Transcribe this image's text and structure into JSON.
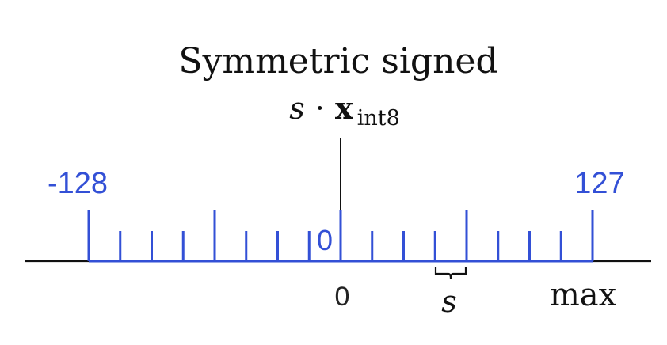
{
  "title": "Symmetric signed",
  "formula": {
    "base": "s",
    "dot": "·",
    "var": "x",
    "subscript": "int8"
  },
  "scale": {
    "min_label": "-128",
    "max_label": "127",
    "zero_blue_label": "0",
    "zero_label": "0",
    "max_text": "max",
    "step_label": "s",
    "tick_count": 17
  },
  "colors": {
    "accent": "#3350d6",
    "ink": "#111111",
    "background": "#ffffff"
  }
}
